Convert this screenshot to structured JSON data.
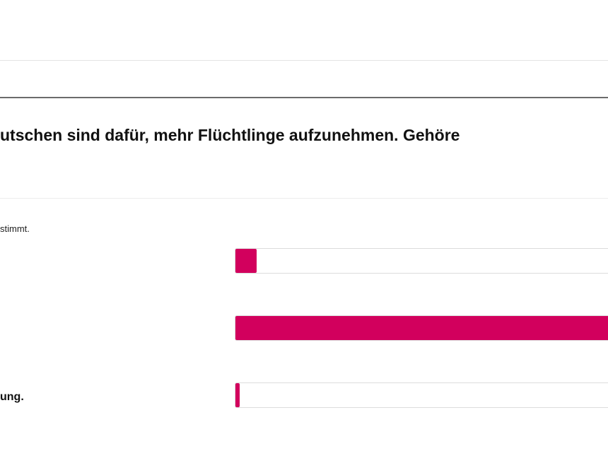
{
  "question": {
    "text": "utschen sind dafür, mehr Flüchtlinge aufzunehmen. Gehöre"
  },
  "poll": {
    "note": "stimmt.",
    "accent_color": "#d2005d",
    "options": [
      {
        "label": "",
        "fraction": 0.055
      },
      {
        "label": "",
        "fraction": 1.0
      },
      {
        "label": "ung.",
        "fraction": 0.012
      }
    ]
  }
}
